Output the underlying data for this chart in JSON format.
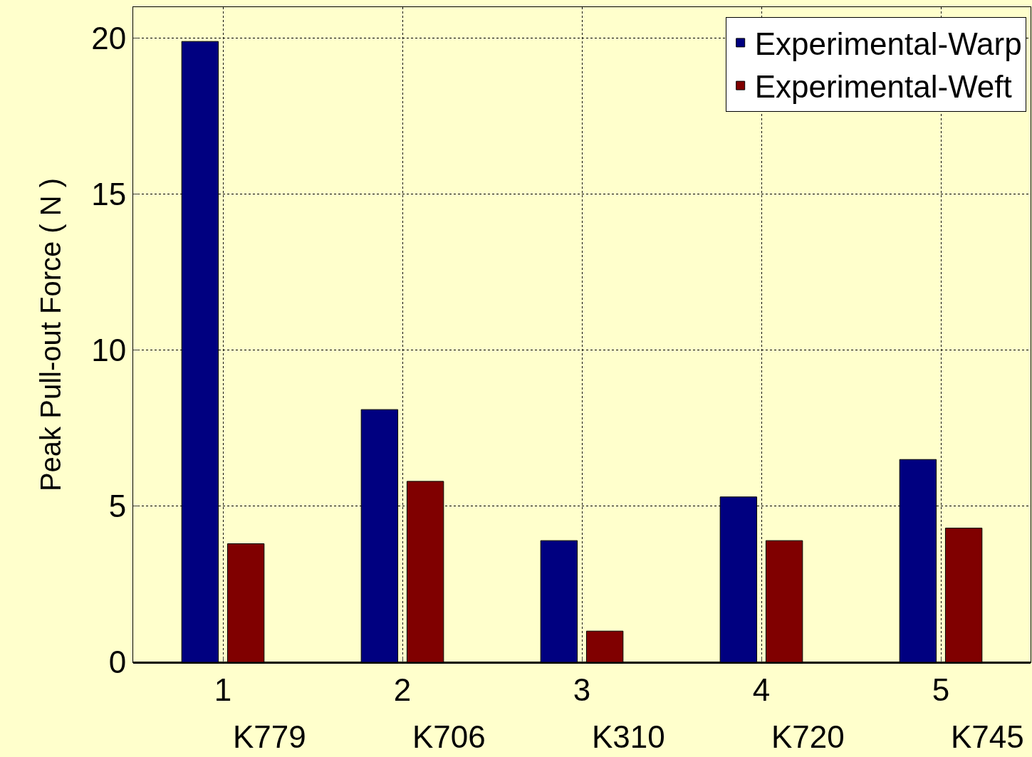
{
  "chart_data": {
    "type": "bar",
    "ylabel": "Peak Pull-out Force ( N )",
    "categories": [
      "1",
      "2",
      "3",
      "4",
      "5"
    ],
    "series": [
      {
        "name": "Experimental-Warp",
        "color": "#000080",
        "values": [
          19.9,
          8.1,
          3.9,
          5.3,
          6.5
        ]
      },
      {
        "name": "Experimental-Weft",
        "color": "#800000",
        "values": [
          3.8,
          5.8,
          1.0,
          3.9,
          4.3
        ]
      }
    ],
    "annotations": [
      "K779",
      "K706",
      "K310",
      "K720",
      "K745"
    ],
    "ylim": [
      0,
      21
    ],
    "yticks": [
      0,
      5,
      10,
      15,
      20
    ],
    "grid": true,
    "legend": "top right"
  }
}
